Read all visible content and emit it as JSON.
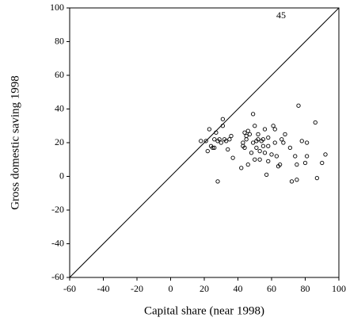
{
  "chart_data": {
    "type": "scatter",
    "x_label": "Capital share (near 1998)",
    "y_label": "Gross domestic saving 1998",
    "annotation": "45",
    "xlim": [
      -60,
      100
    ],
    "ylim": [
      -60,
      100
    ],
    "xticks": [
      -60,
      -40,
      -20,
      0,
      20,
      40,
      60,
      80,
      100
    ],
    "yticks": [
      -60,
      -40,
      -20,
      0,
      20,
      40,
      60,
      80,
      100
    ],
    "grid": false,
    "series": [
      {
        "color": "#000000",
        "x": [
          18,
          21,
          22,
          23,
          24,
          25,
          26,
          26,
          27,
          28,
          28,
          29,
          30,
          31,
          31,
          32,
          33,
          34,
          35,
          36,
          37,
          42,
          43,
          43,
          44,
          44,
          45,
          45,
          46,
          46,
          47,
          48,
          49,
          49,
          50,
          50,
          51,
          51,
          52,
          52,
          53,
          53,
          54,
          55,
          55,
          56,
          56,
          57,
          58,
          58,
          58,
          60,
          61,
          62,
          62,
          63,
          64,
          65,
          66,
          67,
          68,
          71,
          72,
          74,
          75,
          75,
          76,
          78,
          80,
          81,
          81,
          86,
          87,
          90,
          92
        ],
        "values": [
          21,
          21,
          15,
          28,
          18,
          17,
          17,
          22,
          26,
          -3,
          21,
          22,
          20,
          34,
          30,
          22,
          21,
          16,
          22,
          24,
          11,
          5,
          20,
          18,
          26,
          17,
          24,
          22,
          27,
          7,
          25,
          14,
          20,
          37,
          10,
          30,
          17,
          21,
          25,
          22,
          10,
          15,
          21,
          22,
          18,
          28,
          14,
          1,
          23,
          18,
          9,
          13,
          30,
          28,
          20,
          12,
          6,
          7,
          22,
          20,
          25,
          17,
          -3,
          12,
          -2,
          7,
          42,
          21,
          8,
          12,
          20,
          32,
          -1,
          8,
          13
        ]
      }
    ]
  }
}
